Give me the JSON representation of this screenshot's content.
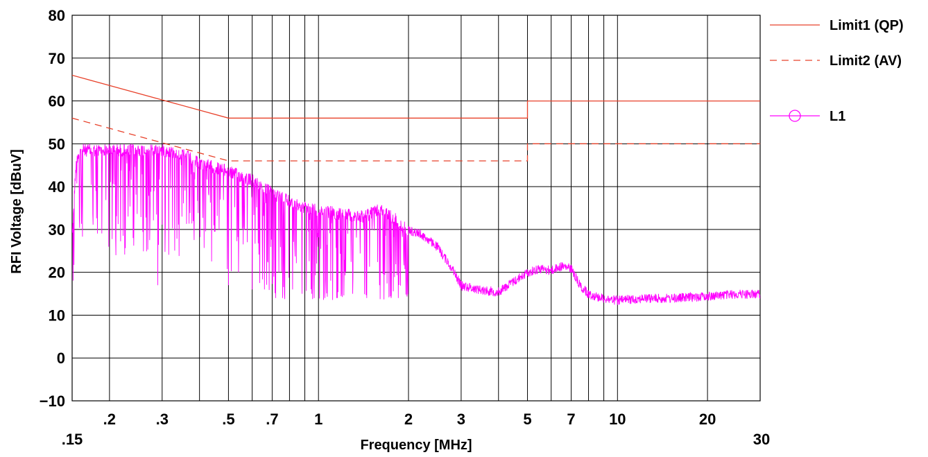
{
  "chart_data": {
    "type": "line",
    "xscale": "log",
    "xlim": [
      0.15,
      30
    ],
    "ylim": [
      -10,
      80
    ],
    "grid": true,
    "xlabel": "Frequency [MHz]",
    "ylabel": "RFI Voltage [dBuV]",
    "x_tick_labels": [
      ".15",
      ".2",
      ".3",
      ".5",
      ".7",
      "1",
      "2",
      "3",
      "5",
      "7",
      "10",
      "20",
      "30"
    ],
    "x_tick_values": [
      0.15,
      0.2,
      0.3,
      0.5,
      0.7,
      1,
      2,
      3,
      5,
      7,
      10,
      20,
      30
    ],
    "x_minor_gridlines": [
      0.4,
      0.6,
      0.8,
      0.9,
      4,
      6,
      8,
      9
    ],
    "y_ticks": [
      -10,
      0,
      10,
      20,
      30,
      40,
      50,
      60,
      70,
      80
    ],
    "legend_position": "right",
    "series": [
      {
        "name": "Limit1 (QP)",
        "color": "#e8412a",
        "style": "solid",
        "points": [
          [
            0.15,
            66
          ],
          [
            0.5,
            56
          ],
          [
            0.5,
            56
          ],
          [
            5,
            56
          ],
          [
            5,
            60
          ],
          [
            30,
            60
          ]
        ]
      },
      {
        "name": "Limit2 (AV)",
        "color": "#e8412a",
        "style": "dashed",
        "points": [
          [
            0.15,
            56
          ],
          [
            0.5,
            46
          ],
          [
            0.5,
            46
          ],
          [
            5,
            46
          ],
          [
            5,
            50
          ],
          [
            30,
            50
          ]
        ]
      },
      {
        "name": "L1",
        "color": "#ff00ff",
        "style": "solid",
        "marker": "circle",
        "upper_envelope": [
          [
            0.15,
            31
          ],
          [
            0.155,
            48
          ],
          [
            0.16,
            50
          ],
          [
            0.17,
            50
          ],
          [
            0.2,
            50
          ],
          [
            0.25,
            50
          ],
          [
            0.3,
            50
          ],
          [
            0.35,
            49
          ],
          [
            0.4,
            47
          ],
          [
            0.45,
            46
          ],
          [
            0.5,
            45
          ],
          [
            0.6,
            43
          ],
          [
            0.7,
            40
          ],
          [
            0.8,
            38
          ],
          [
            0.9,
            36.5
          ],
          [
            1.0,
            36
          ],
          [
            1.2,
            35
          ],
          [
            1.4,
            34.5
          ],
          [
            1.6,
            36
          ],
          [
            1.8,
            34
          ],
          [
            2.0,
            31
          ],
          [
            2.2,
            30
          ],
          [
            2.5,
            27
          ],
          [
            2.8,
            22
          ],
          [
            3.0,
            18
          ],
          [
            3.5,
            17
          ],
          [
            4.0,
            16.5
          ],
          [
            4.5,
            19
          ],
          [
            5.0,
            21
          ],
          [
            5.5,
            22
          ],
          [
            6.0,
            21.5
          ],
          [
            6.5,
            22.5
          ],
          [
            7.0,
            22
          ],
          [
            7.5,
            18
          ],
          [
            8.0,
            16
          ],
          [
            9.0,
            15
          ],
          [
            10,
            14.5
          ],
          [
            12,
            15
          ],
          [
            15,
            15
          ],
          [
            20,
            15.5
          ],
          [
            25,
            16
          ],
          [
            30,
            16
          ]
        ],
        "dips": [
          [
            0.18,
            39
          ],
          [
            0.21,
            24
          ],
          [
            0.24,
            28
          ],
          [
            0.29,
            17
          ],
          [
            0.43,
            38
          ],
          [
            0.5,
            17
          ],
          [
            0.54,
            20
          ],
          [
            0.6,
            16
          ],
          [
            0.66,
            16
          ],
          [
            0.72,
            14
          ],
          [
            0.77,
            15
          ],
          [
            0.82,
            16
          ],
          [
            0.88,
            15
          ],
          [
            0.95,
            15
          ],
          [
            1.05,
            14
          ],
          [
            1.15,
            14
          ],
          [
            1.3,
            15
          ],
          [
            1.45,
            14
          ],
          [
            1.6,
            17
          ],
          [
            1.75,
            14
          ],
          [
            1.85,
            14
          ]
        ]
      }
    ]
  }
}
